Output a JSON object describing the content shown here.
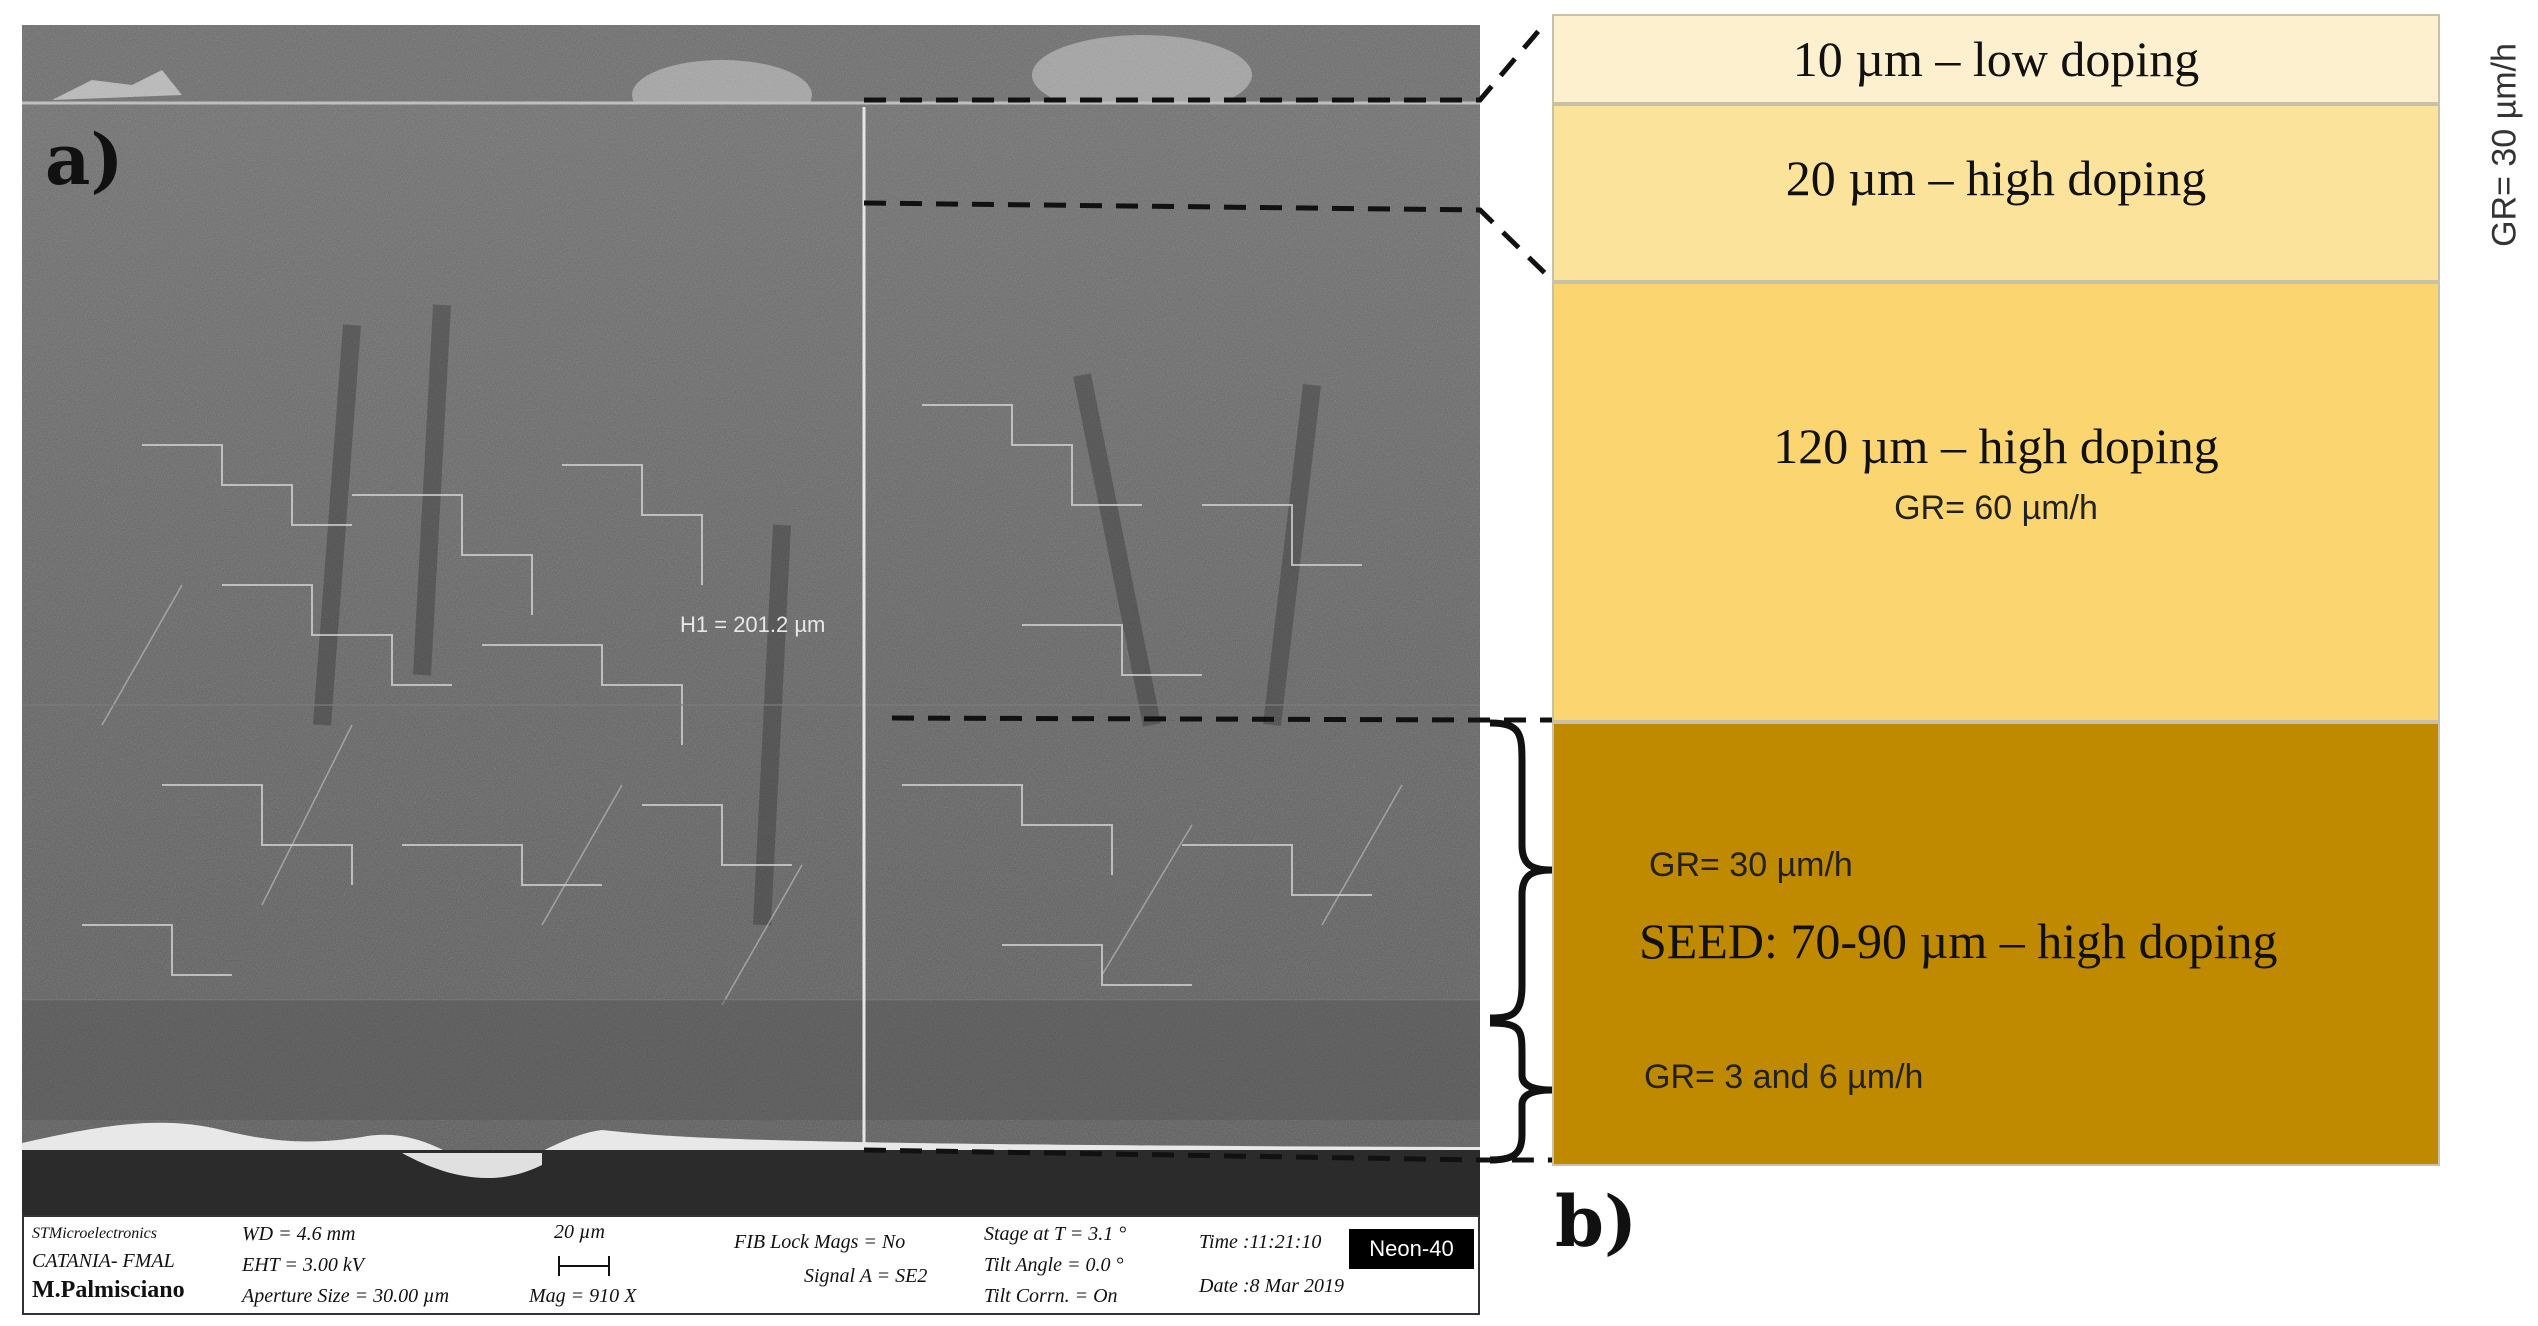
{
  "figure": {
    "panel_a_label": "a)",
    "panel_b_label": "b)",
    "measurement_label": "H1 = 201.2 µm"
  },
  "sem_info": {
    "company": "STMicroelectronics",
    "lab": "CATANIA- FMAL",
    "operator": "M.Palmisciano",
    "wd": "WD = 4.6 mm",
    "eht": "EHT = 3.00 kV",
    "aperture": "Aperture Size = 30.00 µm",
    "scale_label": "20 µm",
    "mag": "Mag = 910 X",
    "fib_lock": "FIB Lock Mags = No",
    "signal": "Signal A = SE2",
    "stage": "Stage at T = 3.1 °",
    "tilt_angle": "Tilt Angle = 0.0 °",
    "tilt_corrn": "Tilt Corrn. = On",
    "time": "Time :11:21:10",
    "date": "Date :8 Mar 2019",
    "instrument": "Neon-40"
  },
  "layers": [
    {
      "label": "10 µm – low doping",
      "color": "#fdf0cf"
    },
    {
      "label": "20 µm – high doping",
      "color": "#fbe39b",
      "growth_rate": "GR= 30 µm/h"
    },
    {
      "label": "120 µm – high doping",
      "color": "#fbd670",
      "growth_rate": "GR= 60 µm/h"
    },
    {
      "label": "SEED: 70-90 µm – high doping",
      "color": "#c08a00",
      "growth_rate_upper": "GR= 30 µm/h",
      "growth_rate_lower": "GR= 3 and 6 µm/h"
    }
  ]
}
